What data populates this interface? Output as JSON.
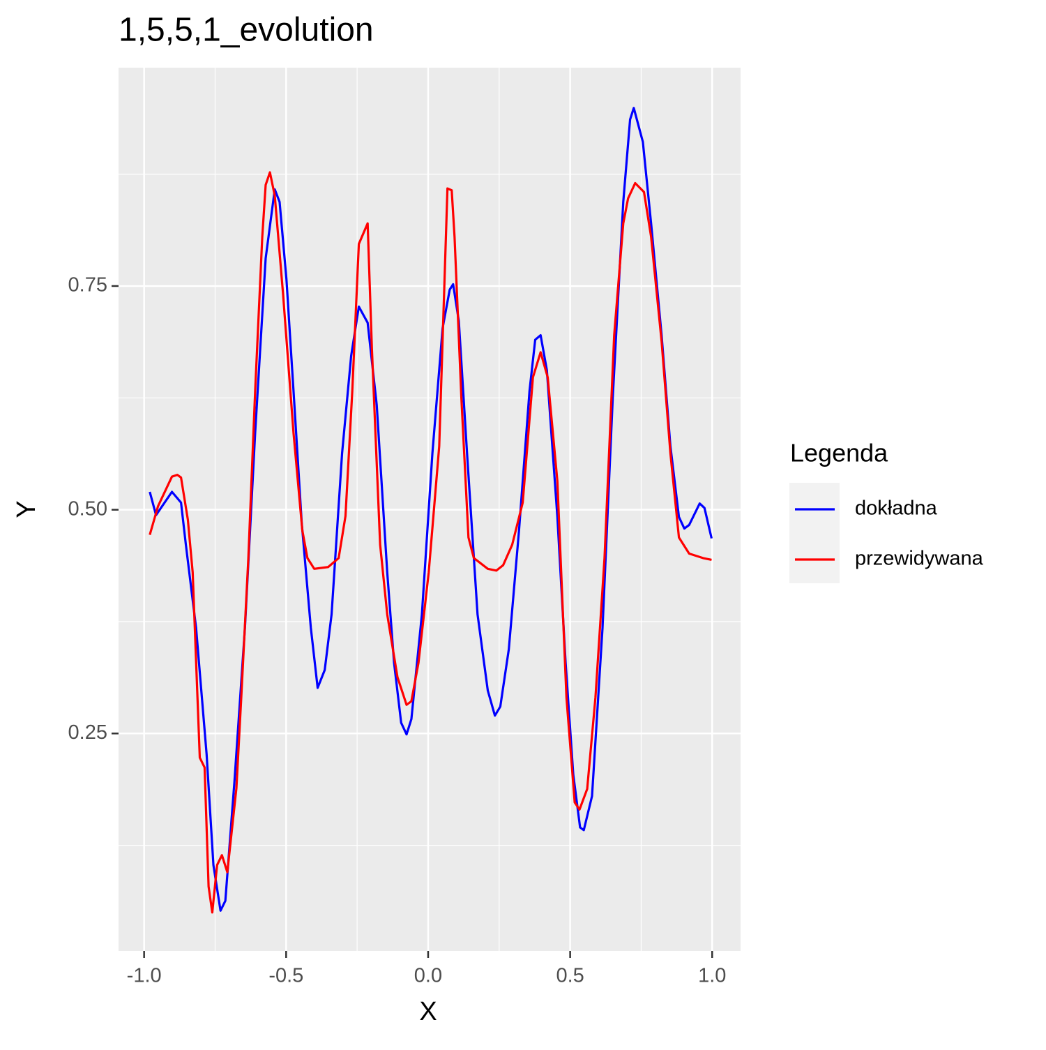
{
  "chart_data": {
    "type": "line",
    "title": "1,5,5,1_evolution",
    "x_label": "X",
    "y_label": "Y",
    "xlim": [
      -1.09,
      1.1
    ],
    "ylim": [
      0.007,
      0.994
    ],
    "xticks": [
      {
        "value": -1.0,
        "label": "-1.0"
      },
      -0.5,
      {
        "value": 0.0,
        "label": "0.0"
      },
      0.5,
      {
        "value": 1.0,
        "label": "1.0"
      }
    ],
    "yticks": [
      0.25,
      {
        "value": 0.5,
        "label": "0.50"
      },
      0.75
    ],
    "x_minor_grid": [
      -0.75,
      -0.25,
      0.25,
      0.75
    ],
    "y_minor_grid": [
      0.125,
      0.375,
      0.625,
      0.875
    ],
    "grid": true,
    "legend_title": "Legenda",
    "legend_position": "right",
    "series": [
      {
        "name": "dokładna",
        "color": "#0000ff",
        "x": [
          -0.98,
          -0.958,
          -0.902,
          -0.87,
          -0.853,
          -0.817,
          -0.78,
          -0.756,
          -0.731,
          -0.714,
          -0.682,
          -0.645,
          -0.609,
          -0.572,
          -0.54,
          -0.523,
          -0.499,
          -0.474,
          -0.445,
          -0.413,
          -0.389,
          -0.364,
          -0.34,
          -0.303,
          -0.271,
          -0.244,
          -0.213,
          -0.181,
          -0.144,
          -0.12,
          -0.095,
          -0.076,
          -0.059,
          -0.022,
          0.015,
          0.051,
          0.076,
          0.088,
          0.108,
          0.137,
          0.174,
          0.21,
          0.235,
          0.254,
          0.284,
          0.32,
          0.357,
          0.377,
          0.396,
          0.418,
          0.455,
          0.484,
          0.511,
          0.535,
          0.548,
          0.577,
          0.614,
          0.65,
          0.687,
          0.711,
          0.724,
          0.756,
          0.785,
          0.822,
          0.853,
          0.883,
          0.902,
          0.919,
          0.956,
          0.973,
          0.998
        ],
        "values": [
          0.52,
          0.494,
          0.52,
          0.508,
          0.461,
          0.368,
          0.227,
          0.103,
          0.052,
          0.063,
          0.196,
          0.368,
          0.586,
          0.781,
          0.858,
          0.844,
          0.758,
          0.633,
          0.485,
          0.368,
          0.301,
          0.321,
          0.383,
          0.563,
          0.672,
          0.727,
          0.709,
          0.617,
          0.43,
          0.329,
          0.262,
          0.249,
          0.266,
          0.383,
          0.563,
          0.703,
          0.746,
          0.752,
          0.711,
          0.563,
          0.383,
          0.298,
          0.27,
          0.28,
          0.344,
          0.477,
          0.633,
          0.69,
          0.695,
          0.656,
          0.492,
          0.329,
          0.204,
          0.145,
          0.142,
          0.18,
          0.368,
          0.625,
          0.844,
          0.936,
          0.949,
          0.911,
          0.82,
          0.695,
          0.571,
          0.492,
          0.479,
          0.483,
          0.507,
          0.502,
          0.468
        ]
      },
      {
        "name": "przewidywana",
        "color": "#ff0000",
        "x": [
          -0.98,
          -0.951,
          -0.902,
          -0.883,
          -0.87,
          -0.846,
          -0.829,
          -0.804,
          -0.787,
          -0.773,
          -0.76,
          -0.743,
          -0.726,
          -0.707,
          -0.675,
          -0.658,
          -0.633,
          -0.609,
          -0.584,
          -0.572,
          -0.557,
          -0.54,
          -0.511,
          -0.474,
          -0.443,
          -0.425,
          -0.401,
          -0.352,
          -0.315,
          -0.291,
          -0.267,
          -0.244,
          -0.213,
          -0.198,
          -0.169,
          -0.144,
          -0.108,
          -0.076,
          -0.059,
          -0.034,
          0.002,
          0.039,
          0.068,
          0.083,
          0.093,
          0.117,
          0.142,
          0.161,
          0.21,
          0.24,
          0.264,
          0.296,
          0.333,
          0.369,
          0.396,
          0.421,
          0.455,
          0.487,
          0.516,
          0.533,
          0.56,
          0.589,
          0.621,
          0.655,
          0.687,
          0.704,
          0.729,
          0.76,
          0.785,
          0.822,
          0.853,
          0.883,
          0.919,
          0.968,
          0.998
        ],
        "values": [
          0.472,
          0.504,
          0.537,
          0.539,
          0.536,
          0.489,
          0.43,
          0.223,
          0.212,
          0.079,
          0.05,
          0.103,
          0.114,
          0.095,
          0.189,
          0.29,
          0.446,
          0.633,
          0.805,
          0.863,
          0.877,
          0.851,
          0.742,
          0.586,
          0.477,
          0.446,
          0.434,
          0.436,
          0.446,
          0.493,
          0.633,
          0.797,
          0.82,
          0.68,
          0.461,
          0.383,
          0.313,
          0.282,
          0.286,
          0.329,
          0.43,
          0.571,
          0.859,
          0.857,
          0.805,
          0.625,
          0.469,
          0.446,
          0.434,
          0.432,
          0.438,
          0.461,
          0.508,
          0.648,
          0.676,
          0.648,
          0.532,
          0.29,
          0.173,
          0.165,
          0.188,
          0.29,
          0.446,
          0.695,
          0.82,
          0.848,
          0.865,
          0.855,
          0.805,
          0.688,
          0.563,
          0.469,
          0.451,
          0.446,
          0.444
        ]
      }
    ]
  }
}
